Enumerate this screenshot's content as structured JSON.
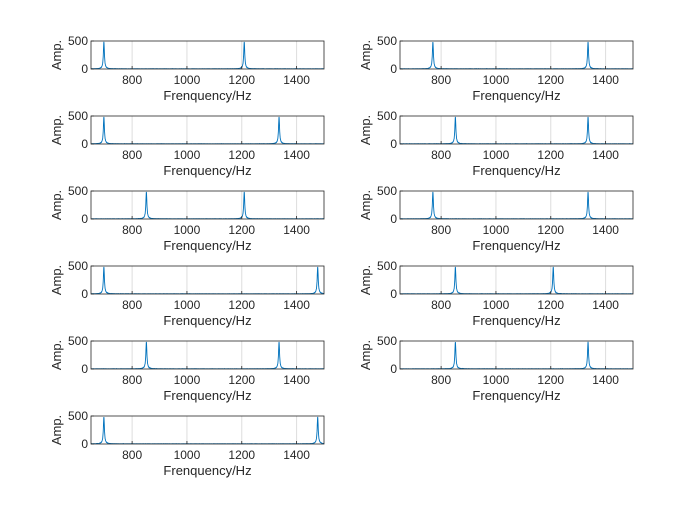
{
  "figure": {
    "background": "#ffffff",
    "line_color": "#0072bd",
    "grid_color": "#dddddd",
    "axis_color": "#262626"
  },
  "chart_data": [
    {
      "type": "line",
      "xlabel": "Frenquency/Hz",
      "ylabel": "Amp.",
      "xlim": [
        650,
        1500
      ],
      "ylim": [
        0,
        500
      ],
      "xticks": [
        800,
        1000,
        1200,
        1400
      ],
      "yticks": [
        0,
        500
      ],
      "grid": "vertical",
      "peaks": [
        {
          "x": 697,
          "y": 480
        },
        {
          "x": 1209,
          "y": 480
        }
      ]
    },
    {
      "type": "line",
      "xlabel": "Frenquency/Hz",
      "ylabel": "Amp.",
      "xlim": [
        650,
        1500
      ],
      "ylim": [
        0,
        500
      ],
      "xticks": [
        800,
        1000,
        1200,
        1400
      ],
      "yticks": [
        0,
        500
      ],
      "grid": "vertical",
      "peaks": [
        {
          "x": 770,
          "y": 480
        },
        {
          "x": 1336,
          "y": 480
        }
      ]
    },
    {
      "type": "line",
      "xlabel": "Frenquency/Hz",
      "ylabel": "Amp.",
      "xlim": [
        650,
        1500
      ],
      "ylim": [
        0,
        500
      ],
      "xticks": [
        800,
        1000,
        1200,
        1400
      ],
      "yticks": [
        0,
        500
      ],
      "grid": "vertical",
      "peaks": [
        {
          "x": 697,
          "y": 480
        },
        {
          "x": 1336,
          "y": 480
        }
      ]
    },
    {
      "type": "line",
      "xlabel": "Frenquency/Hz",
      "ylabel": "Amp.",
      "xlim": [
        650,
        1500
      ],
      "ylim": [
        0,
        500
      ],
      "xticks": [
        800,
        1000,
        1200,
        1400
      ],
      "yticks": [
        0,
        500
      ],
      "grid": "vertical",
      "peaks": [
        {
          "x": 852,
          "y": 480
        },
        {
          "x": 1336,
          "y": 480
        }
      ]
    },
    {
      "type": "line",
      "xlabel": "Frenquency/Hz",
      "ylabel": "Amp.",
      "xlim": [
        650,
        1500
      ],
      "ylim": [
        0,
        500
      ],
      "xticks": [
        800,
        1000,
        1200,
        1400
      ],
      "yticks": [
        0,
        500
      ],
      "grid": "vertical",
      "peaks": [
        {
          "x": 852,
          "y": 480
        },
        {
          "x": 1209,
          "y": 480
        }
      ]
    },
    {
      "type": "line",
      "xlabel": "Frenquency/Hz",
      "ylabel": "Amp.",
      "xlim": [
        650,
        1500
      ],
      "ylim": [
        0,
        500
      ],
      "xticks": [
        800,
        1000,
        1200,
        1400
      ],
      "yticks": [
        0,
        500
      ],
      "grid": "vertical",
      "peaks": [
        {
          "x": 770,
          "y": 480
        },
        {
          "x": 1336,
          "y": 480
        }
      ]
    },
    {
      "type": "line",
      "xlabel": "Frenquency/Hz",
      "ylabel": "Amp.",
      "xlim": [
        650,
        1500
      ],
      "ylim": [
        0,
        500
      ],
      "xticks": [
        800,
        1000,
        1200,
        1400
      ],
      "yticks": [
        0,
        500
      ],
      "grid": "vertical",
      "peaks": [
        {
          "x": 697,
          "y": 480
        },
        {
          "x": 1477,
          "y": 480
        }
      ]
    },
    {
      "type": "line",
      "xlabel": "Frenquency/Hz",
      "ylabel": "Amp.",
      "xlim": [
        650,
        1500
      ],
      "ylim": [
        0,
        500
      ],
      "xticks": [
        800,
        1000,
        1200,
        1400
      ],
      "yticks": [
        0,
        500
      ],
      "grid": "vertical",
      "peaks": [
        {
          "x": 852,
          "y": 480
        },
        {
          "x": 1209,
          "y": 480
        }
      ]
    },
    {
      "type": "line",
      "xlabel": "Frenquency/Hz",
      "ylabel": "Amp.",
      "xlim": [
        650,
        1500
      ],
      "ylim": [
        0,
        500
      ],
      "xticks": [
        800,
        1000,
        1200,
        1400
      ],
      "yticks": [
        0,
        500
      ],
      "grid": "vertical",
      "peaks": [
        {
          "x": 852,
          "y": 480
        },
        {
          "x": 1336,
          "y": 480
        }
      ]
    },
    {
      "type": "line",
      "xlabel": "Frenquency/Hz",
      "ylabel": "Amp.",
      "xlim": [
        650,
        1500
      ],
      "ylim": [
        0,
        500
      ],
      "xticks": [
        800,
        1000,
        1200,
        1400
      ],
      "yticks": [
        0,
        500
      ],
      "grid": "vertical",
      "peaks": [
        {
          "x": 852,
          "y": 480
        },
        {
          "x": 1336,
          "y": 480
        }
      ]
    },
    {
      "type": "line",
      "xlabel": "Frenquency/Hz",
      "ylabel": "Amp.",
      "xlim": [
        650,
        1500
      ],
      "ylim": [
        0,
        500
      ],
      "xticks": [
        800,
        1000,
        1200,
        1400
      ],
      "yticks": [
        0,
        500
      ],
      "grid": "vertical",
      "peaks": [
        {
          "x": 697,
          "y": 480
        },
        {
          "x": 1477,
          "y": 480
        }
      ]
    }
  ]
}
